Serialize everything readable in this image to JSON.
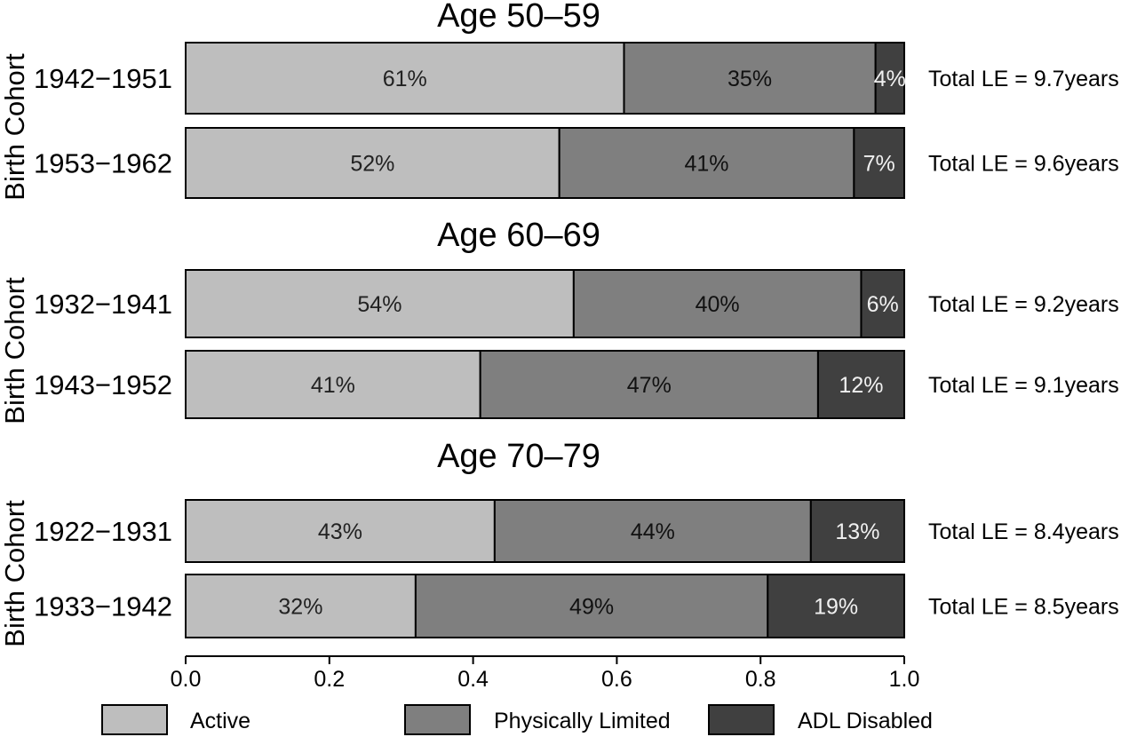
{
  "chart_data": {
    "type": "bar",
    "orientation": "horizontal",
    "stacked": true,
    "xlim": [
      0,
      1
    ],
    "xticks": [
      "0.0",
      "0.2",
      "0.4",
      "0.6",
      "0.8",
      "1.0"
    ],
    "ylabel": "Birth Cohort",
    "legend": {
      "placement": "bottom",
      "entries": [
        "Active",
        "Physically Limited",
        "ADL Disabled"
      ]
    },
    "colors": {
      "Active": "#bebebe",
      "Physically Limited": "#7f7f7f",
      "ADL Disabled": "#404040"
    },
    "panels": [
      {
        "title": "Age 50–59",
        "rows": [
          {
            "cohort": "1942−1951",
            "values": [
              0.61,
              0.35,
              0.04
            ],
            "labels": [
              "61%",
              "35%",
              "4%"
            ],
            "total": "Total LE = 9.7years"
          },
          {
            "cohort": "1953−1962",
            "values": [
              0.52,
              0.41,
              0.07
            ],
            "labels": [
              "52%",
              "41%",
              "7%"
            ],
            "total": "Total LE = 9.6years"
          }
        ]
      },
      {
        "title": "Age 60–69",
        "rows": [
          {
            "cohort": "1932−1941",
            "values": [
              0.54,
              0.4,
              0.06
            ],
            "labels": [
              "54%",
              "40%",
              "6%"
            ],
            "total": "Total LE = 9.2years"
          },
          {
            "cohort": "1943−1952",
            "values": [
              0.41,
              0.47,
              0.12
            ],
            "labels": [
              "41%",
              "47%",
              "12%"
            ],
            "total": "Total LE = 9.1years"
          }
        ]
      },
      {
        "title": "Age 70–79",
        "rows": [
          {
            "cohort": "1922−1931",
            "values": [
              0.43,
              0.44,
              0.13
            ],
            "labels": [
              "43%",
              "44%",
              "13%"
            ],
            "total": "Total LE = 8.4years"
          },
          {
            "cohort": "1933−1942",
            "values": [
              0.32,
              0.49,
              0.19
            ],
            "labels": [
              "32%",
              "49%",
              "19%"
            ],
            "total": "Total LE = 8.5years"
          }
        ]
      }
    ]
  }
}
